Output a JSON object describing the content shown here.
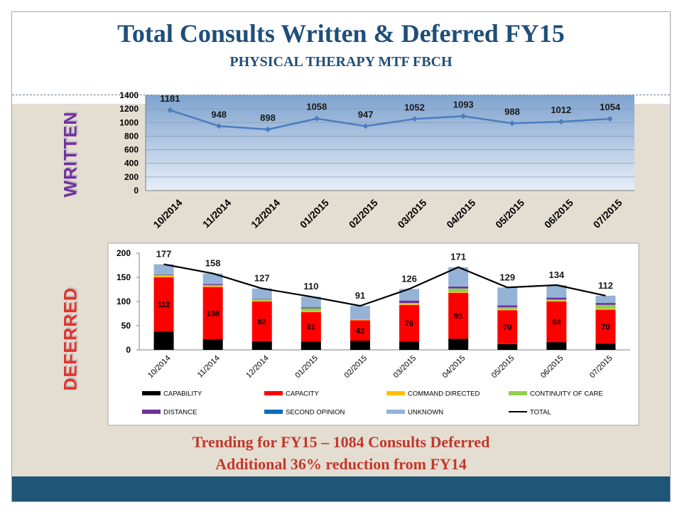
{
  "header": {
    "title": "Total Consults Written & Deferred FY15",
    "subtitle": "PHYSICAL THERAPY MTF FBCH"
  },
  "side_labels": {
    "written": "WRITTEN",
    "deferred": "DEFERRED"
  },
  "footer_text": {
    "line1": "Trending for FY15 – 1084 Consults Deferred",
    "line2": "Additional 36% reduction from FY14"
  },
  "colors": {
    "title": "#1f4e79",
    "line": "#4a7dbe",
    "capability": "#000000",
    "capacity": "#ff0000",
    "command_directed": "#ffc000",
    "continuity_of_care": "#92d050",
    "distance": "#7030a0",
    "second_opinion": "#0070c0",
    "unknown": "#95b3d7",
    "total": "#000000"
  },
  "chart_data": [
    {
      "type": "line",
      "categories": [
        "10/2014",
        "11/2014",
        "12/2014",
        "01/2015",
        "02/2015",
        "03/2015",
        "04/2015",
        "05/2015",
        "06/2015",
        "07/2015"
      ],
      "series": [
        {
          "values": [
            1181,
            948,
            898,
            1058,
            947,
            1052,
            1093,
            988,
            1012,
            1054
          ]
        }
      ],
      "ylim": [
        0,
        1400
      ],
      "yticks": [
        0,
        200,
        400,
        600,
        800,
        1000,
        1200,
        1400
      ],
      "grid": true
    },
    {
      "type": "bar",
      "stacked": true,
      "categories": [
        "10/2014",
        "11/2014",
        "12/2014",
        "01/2015",
        "02/2015",
        "03/2015",
        "04/2015",
        "05/2015",
        "06/2015",
        "07/2015"
      ],
      "series": [
        {
          "name": "CAPABILITY",
          "values": [
            38,
            22,
            18,
            17,
            19,
            17,
            23,
            12,
            16,
            13
          ]
        },
        {
          "name": "CAPACITY",
          "values": [
            112,
            108,
            82,
            61,
            42,
            76,
            95,
            70,
            84,
            70
          ]
        },
        {
          "name": "COMMAND DIRECTED",
          "values": [
            3,
            2,
            2,
            2,
            1,
            2,
            2,
            2,
            2,
            2
          ]
        },
        {
          "name": "CONTINUITY OF CARE",
          "values": [
            2,
            2,
            2,
            6,
            1,
            2,
            7,
            4,
            2,
            8
          ]
        },
        {
          "name": "DISTANCE",
          "values": [
            1,
            2,
            1,
            2,
            0,
            5,
            4,
            4,
            4,
            4
          ]
        },
        {
          "name": "SECOND OPINION",
          "values": [
            0,
            0,
            0,
            0,
            0,
            0,
            0,
            0,
            0,
            0
          ]
        },
        {
          "name": "UNKNOWN",
          "values": [
            21,
            22,
            22,
            22,
            28,
            24,
            40,
            37,
            26,
            15
          ]
        },
        {
          "name": "TOTAL",
          "type": "line",
          "values": [
            177,
            158,
            127,
            110,
            91,
            126,
            171,
            129,
            134,
            112
          ]
        }
      ],
      "ylim": [
        0,
        200
      ],
      "yticks": [
        0,
        50,
        100,
        150,
        200
      ],
      "legend": "bottom"
    }
  ]
}
